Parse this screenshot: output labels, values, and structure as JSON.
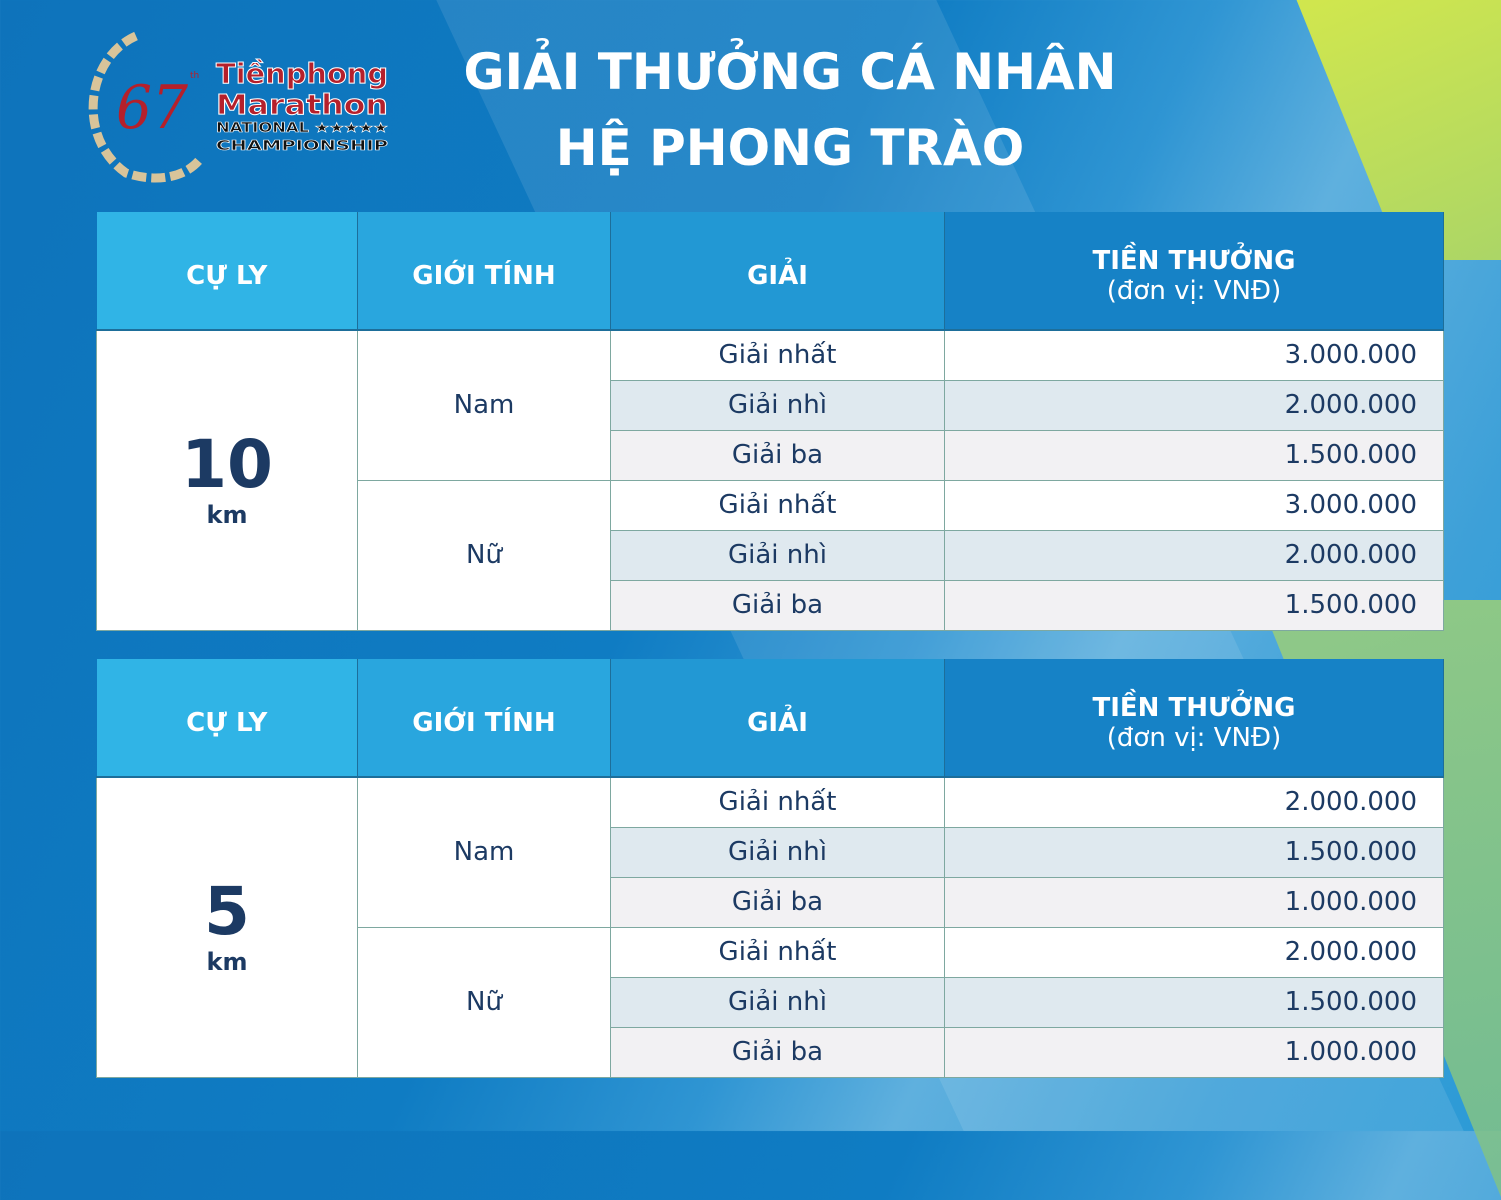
{
  "logo": {
    "text": [
      "67th",
      "Tiền phong",
      "Marathon",
      "NATIONAL",
      "CHAMPIONSHIP"
    ]
  },
  "title": {
    "line1": "GIẢI THƯỞNG CÁ NHÂN",
    "line2": "HỆ PHONG TRÀO"
  },
  "headers": {
    "distance": "CỰ LY",
    "gender": "GIỚI TÍNH",
    "prize": "GIẢI",
    "amount": "TIỀN THƯỞNG",
    "unit": "(đơn vị: VNĐ)"
  },
  "tables": [
    {
      "distance": "10",
      "unit": "km",
      "groups": [
        {
          "gender": "Nam",
          "rows": [
            {
              "prize": "Giải nhất",
              "amount": "3.000.000"
            },
            {
              "prize": "Giải nhì",
              "amount": "2.000.000"
            },
            {
              "prize": "Giải ba",
              "amount": "1.500.000"
            }
          ]
        },
        {
          "gender": "Nữ",
          "rows": [
            {
              "prize": "Giải nhất",
              "amount": "3.000.000"
            },
            {
              "prize": "Giải nhì",
              "amount": "2.000.000"
            },
            {
              "prize": "Giải ba",
              "amount": "1.500.000"
            }
          ]
        }
      ]
    },
    {
      "distance": "5",
      "unit": "km",
      "groups": [
        {
          "gender": "Nam",
          "rows": [
            {
              "prize": "Giải nhất",
              "amount": "2.000.000"
            },
            {
              "prize": "Giải nhì",
              "amount": "1.500.000"
            },
            {
              "prize": "Giải ba",
              "amount": "1.000.000"
            }
          ]
        },
        {
          "gender": "Nữ",
          "rows": [
            {
              "prize": "Giải nhất",
              "amount": "2.000.000"
            },
            {
              "prize": "Giải nhì",
              "amount": "1.500.000"
            },
            {
              "prize": "Giải ba",
              "amount": "1.000.000"
            }
          ]
        }
      ]
    }
  ]
}
